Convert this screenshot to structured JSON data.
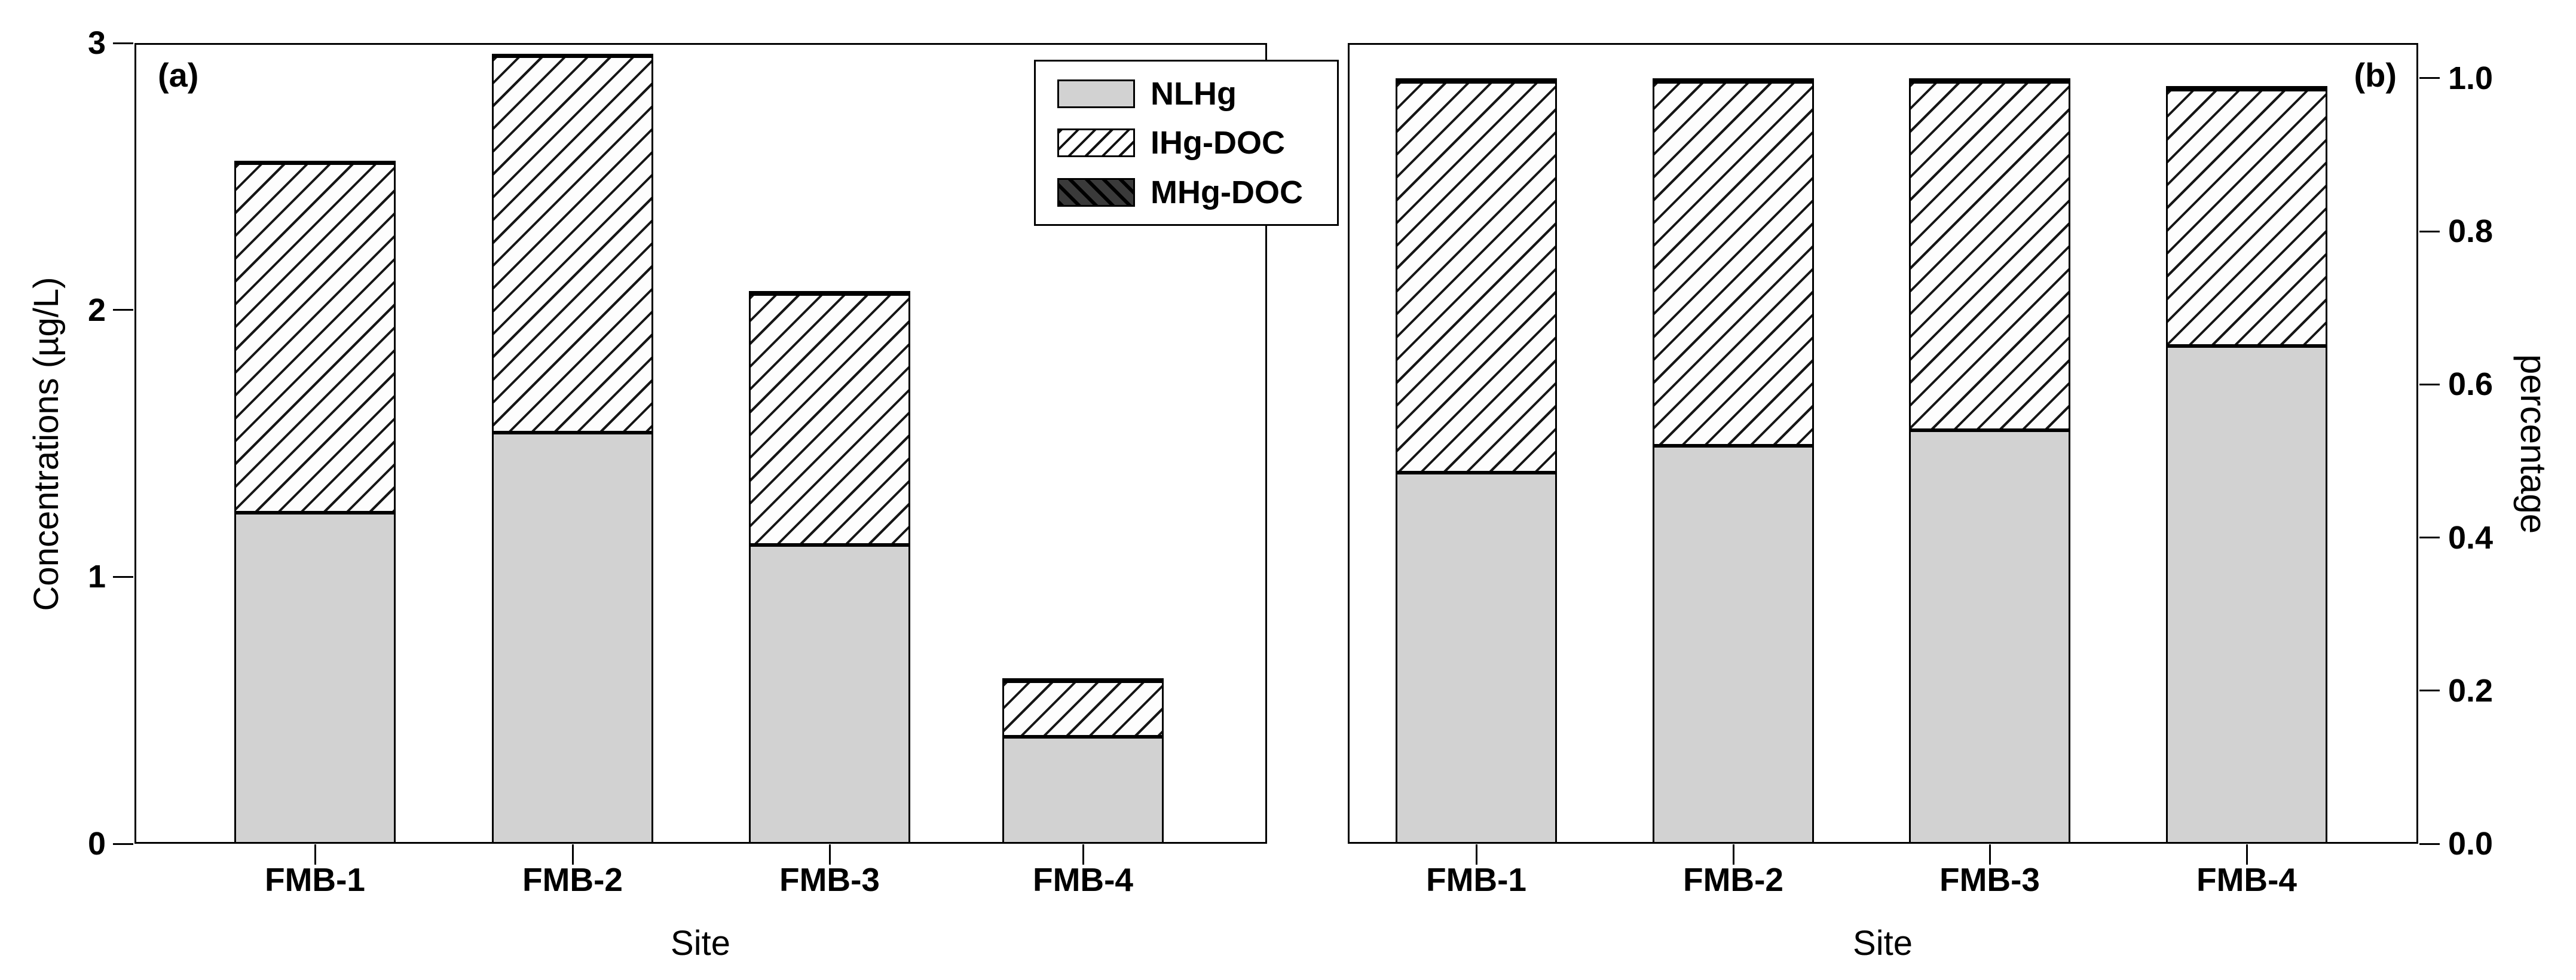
{
  "figure_type": "two-panel stacked bar chart",
  "colors": {
    "background": "#ffffff",
    "text": "#000000",
    "bar_border": "#000000",
    "nlhg_fill": "#d2d2d2",
    "ihg_bg": "#fdfdfd",
    "hatch_line": "#161616",
    "mhg_fill": "#3a3a3a"
  },
  "legend": {
    "items": [
      {
        "label": "NLHg",
        "swatch": "solid-light-gray",
        "fill": "#d2d2d2"
      },
      {
        "label": "IHg-DOC",
        "swatch": "forward-diagonal-hatch-on-white",
        "fill": "#ffffff",
        "line": "#000000"
      },
      {
        "label": "MHg-DOC",
        "swatch": "back-diagonal-hatch-on-dark",
        "fill": "#3a3a3a",
        "line": "#000000"
      }
    ]
  },
  "chart_data": [
    {
      "type": "bar",
      "stacked": true,
      "title": "(a)",
      "categories": [
        "FMB-1",
        "FMB-2",
        "FMB-3",
        "FMB-4"
      ],
      "series": [
        {
          "name": "NLHg",
          "values": [
            1.24,
            1.54,
            1.12,
            0.4
          ]
        },
        {
          "name": "IHg-DOC",
          "values": [
            1.31,
            1.41,
            0.94,
            0.21
          ]
        },
        {
          "name": "MHg-DOC",
          "values": [
            0.01,
            0.01,
            0.01,
            0.01
          ]
        }
      ],
      "stack_totals": [
        2.56,
        2.96,
        2.07,
        0.62
      ],
      "xlabel": "Site",
      "ylabel": "Concentrations (µg/L)",
      "ylim": [
        0,
        3
      ],
      "yticks": [
        0,
        1,
        2,
        3
      ],
      "ytick_labels": [
        "0",
        "1",
        "2",
        "3"
      ],
      "ytick_side": "left",
      "grid": false
    },
    {
      "type": "bar",
      "stacked": true,
      "title": "(b)",
      "categories": [
        "FMB-1",
        "FMB-2",
        "FMB-3",
        "FMB-4"
      ],
      "series": [
        {
          "name": "NLHg",
          "values": [
            0.485,
            0.52,
            0.54,
            0.65
          ]
        },
        {
          "name": "IHg-DOC",
          "values": [
            0.51,
            0.475,
            0.455,
            0.335
          ]
        },
        {
          "name": "MHg-DOC",
          "values": [
            0.005,
            0.005,
            0.005,
            0.005
          ]
        }
      ],
      "stack_totals": [
        1.0,
        1.0,
        1.0,
        0.99
      ],
      "xlabel": "Site",
      "ylabel": "percentage",
      "ylim": [
        0,
        1.0
      ],
      "yticks": [
        0.0,
        0.2,
        0.4,
        0.6,
        0.8,
        1.0
      ],
      "ytick_labels": [
        "0.0",
        "0.2",
        "0.4",
        "0.6",
        "0.8",
        "1.0"
      ],
      "ytick_side": "right",
      "grid": false
    }
  ]
}
